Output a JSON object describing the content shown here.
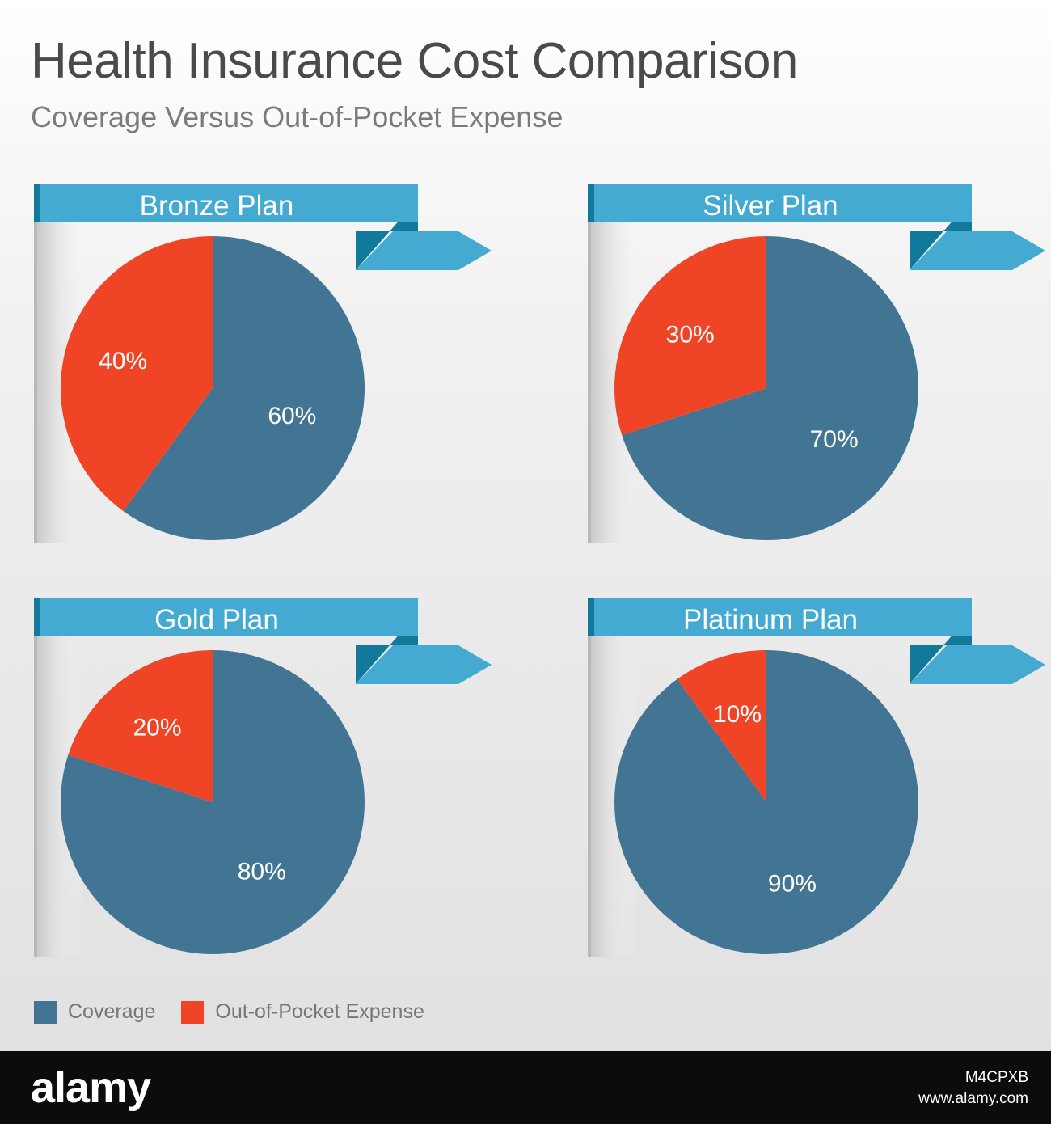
{
  "title": "Health Insurance Cost Comparison",
  "subtitle": "Coverage Versus Out-of-Pocket Expense",
  "legend": [
    {
      "label": "Coverage",
      "color": "#417593"
    },
    {
      "label": "Out-of-Pocket Expense",
      "color": "#f04427"
    }
  ],
  "chart_data": [
    {
      "type": "pie",
      "title": "Bronze Plan",
      "labels": [
        "Out-of-Pocket Expense",
        "Coverage"
      ],
      "values": [
        40,
        60
      ],
      "value_labels": [
        "40%",
        "60%"
      ]
    },
    {
      "type": "pie",
      "title": "Silver Plan",
      "labels": [
        "Out-of-Pocket Expense",
        "Coverage"
      ],
      "values": [
        30,
        70
      ],
      "value_labels": [
        "30%",
        "70%"
      ]
    },
    {
      "type": "pie",
      "title": "Gold Plan",
      "labels": [
        "Out-of-Pocket Expense",
        "Coverage"
      ],
      "values": [
        20,
        80
      ],
      "value_labels": [
        "20%",
        "80%"
      ]
    },
    {
      "type": "pie",
      "title": "Platinum Plan",
      "labels": [
        "Out-of-Pocket Expense",
        "Coverage"
      ],
      "values": [
        10,
        90
      ],
      "value_labels": [
        "10%",
        "90%"
      ]
    }
  ],
  "colors": {
    "banner": "#45aad2",
    "banner_dark": "#117a9a",
    "coverage": "#417593",
    "out_of_pocket": "#f04427"
  },
  "footer": {
    "logo": "alamy",
    "image_id": "M4CPXB",
    "site": "www.alamy.com"
  }
}
